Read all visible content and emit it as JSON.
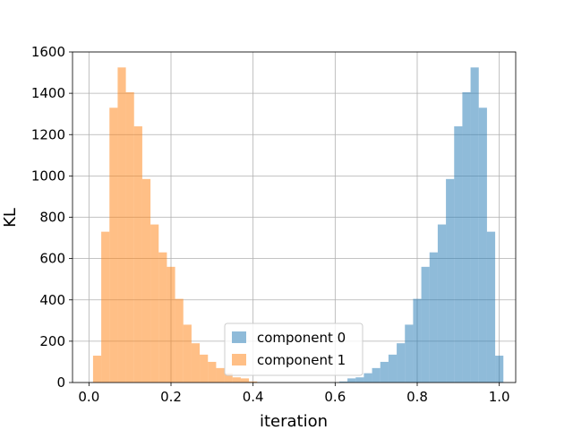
{
  "chart_data": {
    "type": "histogram",
    "title": "",
    "xlabel": "iteration",
    "ylabel": "KL",
    "xlim": [
      -0.04,
      1.04
    ],
    "ylim": [
      0,
      1600
    ],
    "xticks": [
      "0.0",
      "0.2",
      "0.4",
      "0.6",
      "0.8",
      "1.0"
    ],
    "xtick_values": [
      0.0,
      0.2,
      0.4,
      0.6,
      0.8,
      1.0
    ],
    "yticks": [
      "0",
      "200",
      "400",
      "600",
      "800",
      "1000",
      "1200",
      "1400",
      "1600"
    ],
    "ytick_values": [
      0,
      200,
      400,
      600,
      800,
      1000,
      1200,
      1400,
      1600
    ],
    "grid": true,
    "legend_position": "lower-center",
    "series": [
      {
        "name": "component 0",
        "color": "#1f77b4",
        "alpha": 0.5,
        "bin_start": 0.61,
        "bin_width": 0.02,
        "counts": [
          5,
          20,
          25,
          45,
          70,
          100,
          135,
          190,
          280,
          405,
          560,
          630,
          765,
          985,
          1240,
          1405,
          1525,
          1330,
          730,
          130
        ]
      },
      {
        "name": "component 1",
        "color": "#ff7f0e",
        "alpha": 0.5,
        "bin_start": 0.01,
        "bin_width": 0.02,
        "counts": [
          130,
          730,
          1330,
          1525,
          1405,
          1240,
          985,
          765,
          630,
          560,
          405,
          280,
          190,
          135,
          100,
          70,
          45,
          25,
          20,
          5
        ]
      }
    ]
  }
}
